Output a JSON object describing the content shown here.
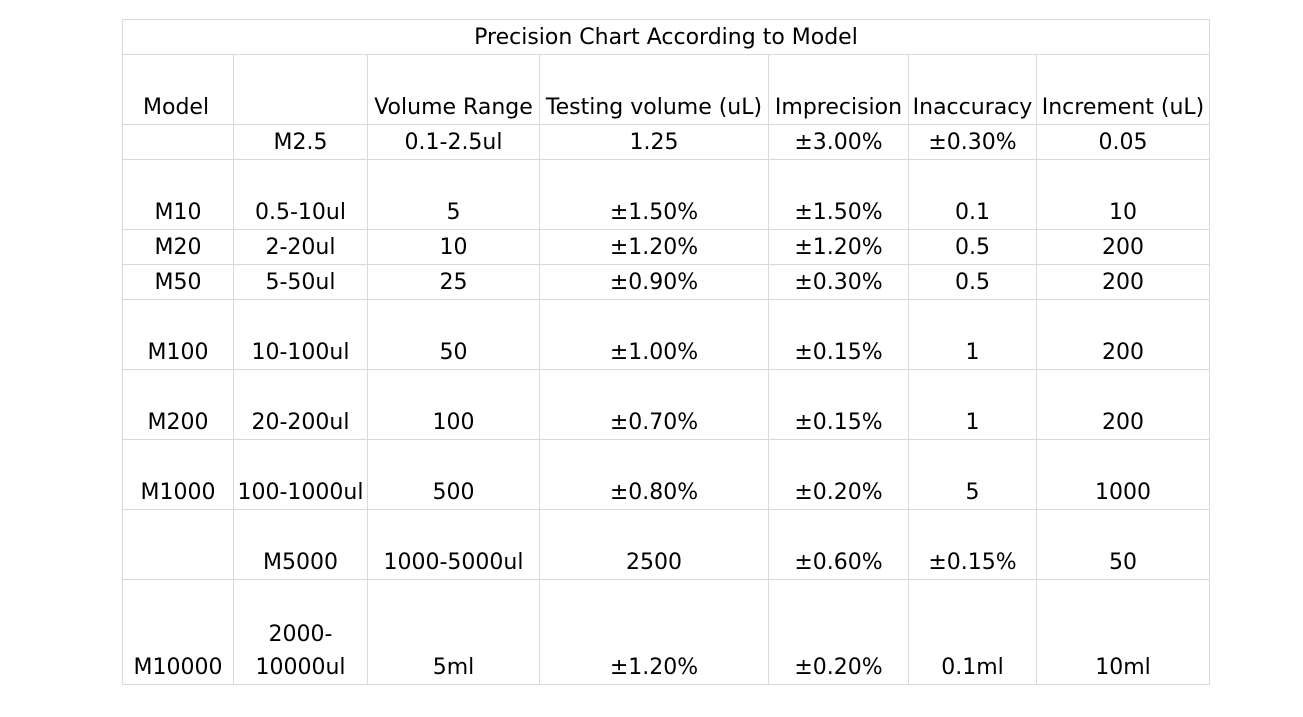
{
  "title": "Precision Chart According to Model",
  "columns": [
    "Model",
    "",
    "Volume Range",
    "Testing volume (uL)",
    "Imprecision",
    "Inaccuracy",
    "Increment (uL)"
  ],
  "rows": [
    {
      "cells": [
        "",
        "M2.5",
        "0.1-2.5ul",
        "1.25",
        "±3.00%",
        "±0.30%",
        "0.05"
      ]
    },
    {
      "cells": [
        "M10",
        "0.5-10ul",
        "5",
        "±1.50%",
        "±1.50%",
        "0.1",
        "10"
      ]
    },
    {
      "cells": [
        "M20",
        "2-20ul",
        "10",
        "±1.20%",
        "±1.20%",
        "0.5",
        "200"
      ]
    },
    {
      "cells": [
        "M50",
        "5-50ul",
        "25",
        "±0.90%",
        "±0.30%",
        "0.5",
        "200"
      ]
    },
    {
      "cells": [
        "M100",
        "10-100ul",
        "50",
        "±1.00%",
        "±0.15%",
        "1",
        "200"
      ]
    },
    {
      "cells": [
        "M200",
        "20-200ul",
        "100",
        "±0.70%",
        "±0.15%",
        "1",
        "200"
      ]
    },
    {
      "cells": [
        "M1000",
        "100-1000ul",
        "500",
        "±0.80%",
        "±0.20%",
        "5",
        "1000"
      ]
    },
    {
      "cells": [
        "",
        "M5000",
        "1000-5000ul",
        "2500",
        "±0.60%",
        "±0.15%",
        "50"
      ]
    },
    {
      "cells": [
        "M10000",
        "2000-10000ul",
        "5ml",
        "±1.20%",
        "±0.20%",
        "0.1ml",
        "10ml"
      ]
    }
  ]
}
